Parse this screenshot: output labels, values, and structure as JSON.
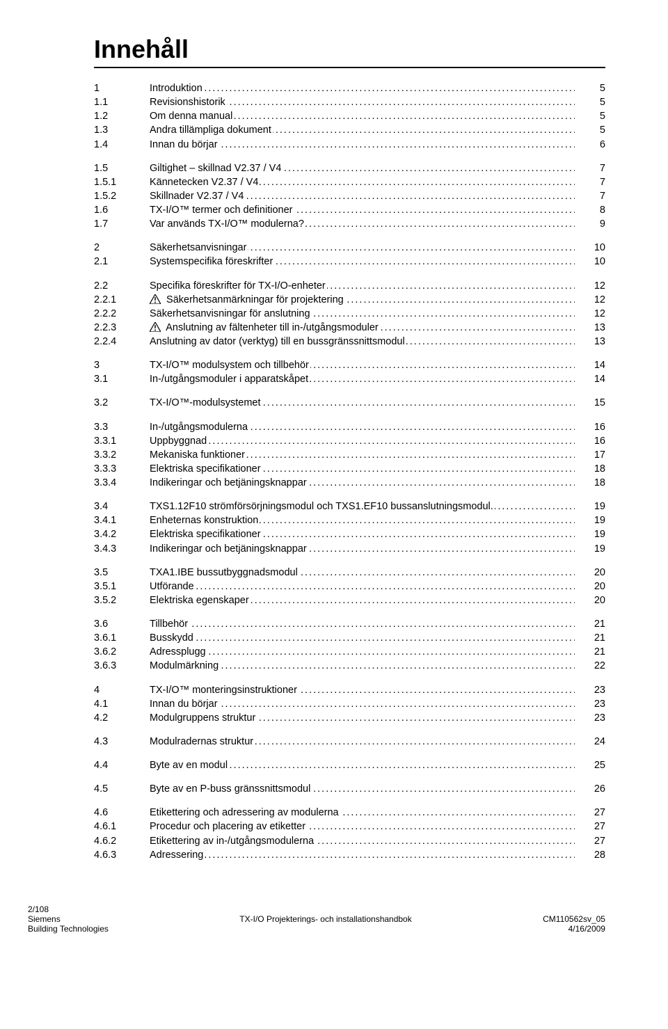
{
  "title": "Innehåll",
  "toc": [
    {
      "num": "1",
      "label": "Introduktion",
      "page": "5",
      "spaceBefore": false
    },
    {
      "num": "1.1",
      "label": "Revisionshistorik",
      "page": "5"
    },
    {
      "num": "1.2",
      "label": "Om denna manual",
      "page": "5"
    },
    {
      "num": "1.3",
      "label": "Andra tillämpliga dokument",
      "page": "5"
    },
    {
      "num": "1.4",
      "label": "Innan du börjar",
      "page": "6"
    },
    {
      "num": "1.5",
      "label": "Giltighet – skillnad V2.37 / V4",
      "page": "7",
      "spaceBefore": true
    },
    {
      "num": "1.5.1",
      "label": "Kännetecken V2.37 / V4",
      "page": "7"
    },
    {
      "num": "1.5.2",
      "label": "Skillnader V2.37 / V4",
      "page": "7"
    },
    {
      "num": "1.6",
      "label": "TX-I/O™ termer och definitioner",
      "page": "8"
    },
    {
      "num": "1.7",
      "label": "Var används TX-I/O™ modulerna?",
      "page": "9"
    },
    {
      "num": "2",
      "label": "Säkerhetsanvisningar",
      "page": "10",
      "spaceBefore": true
    },
    {
      "num": "2.1",
      "label": "Systemspecifika föreskrifter",
      "page": "10"
    },
    {
      "num": "2.2",
      "label": "Specifika föreskrifter för TX-I/O-enheter",
      "page": "12",
      "spaceBefore": true
    },
    {
      "num": "2.2.1",
      "label": "Säkerhetsanmärkningar för projektering",
      "page": "12",
      "warn": true
    },
    {
      "num": "2.2.2",
      "label": "Säkerhetsanvisningar för anslutning",
      "page": "12"
    },
    {
      "num": "2.2.3",
      "label": "Anslutning av fältenheter till in-/utgångsmoduler",
      "page": "13",
      "warn": true
    },
    {
      "num": "2.2.4",
      "label": "Anslutning av dator (verktyg) till en bussgränssnittsmodul",
      "page": "13"
    },
    {
      "num": "3",
      "label": "TX-I/O™ modulsystem och tillbehör",
      "page": "14",
      "spaceBefore": true
    },
    {
      "num": "3.1",
      "label": "In-/utgångsmoduler i apparatskåpet",
      "page": "14"
    },
    {
      "num": "3.2",
      "label": "TX-I/O™-modulsystemet",
      "page": "15",
      "spaceBefore": true
    },
    {
      "num": "3.3",
      "label": "In-/utgångsmodulerna",
      "page": "16",
      "spaceBefore": true
    },
    {
      "num": "3.3.1",
      "label": "Uppbyggnad",
      "page": "16"
    },
    {
      "num": "3.3.2",
      "label": "Mekaniska funktioner",
      "page": "17"
    },
    {
      "num": "3.3.3",
      "label": "Elektriska specifikationer",
      "page": "18"
    },
    {
      "num": "3.3.4",
      "label": "Indikeringar och betjäningsknappar",
      "page": "18"
    },
    {
      "num": "3.4",
      "label": "TXS1.12F10 strömförsörjningsmodul och TXS1.EF10 bussanslutningsmodul.",
      "page": "19",
      "spaceBefore": true
    },
    {
      "num": "3.4.1",
      "label": "Enheternas konstruktion",
      "page": "19"
    },
    {
      "num": "3.4.2",
      "label": "Elektriska specifikationer",
      "page": "19"
    },
    {
      "num": "3.4.3",
      "label": "Indikeringar och betjäningsknappar",
      "page": "19"
    },
    {
      "num": "3.5",
      "label": "TXA1.IBE bussutbyggnadsmodul",
      "page": "20",
      "spaceBefore": true
    },
    {
      "num": "3.5.1",
      "label": "Utförande",
      "page": "20"
    },
    {
      "num": "3.5.2",
      "label": "Elektriska egenskaper",
      "page": "20"
    },
    {
      "num": "3.6",
      "label": "Tillbehör",
      "page": "21",
      "spaceBefore": true
    },
    {
      "num": "3.6.1",
      "label": "Busskydd",
      "page": "21"
    },
    {
      "num": "3.6.2",
      "label": "Adressplugg",
      "page": "21"
    },
    {
      "num": "3.6.3",
      "label": "Modulmärkning",
      "page": "22"
    },
    {
      "num": "4",
      "label": "TX-I/O™ monteringsinstruktioner",
      "page": "23",
      "spaceBefore": true
    },
    {
      "num": "4.1",
      "label": "Innan du börjar",
      "page": "23"
    },
    {
      "num": "4.2",
      "label": "Modulgruppens struktur",
      "page": "23"
    },
    {
      "num": "4.3",
      "label": "Modulradernas struktur",
      "page": "24",
      "spaceBefore": true
    },
    {
      "num": "4.4",
      "label": "Byte av en modul",
      "page": "25",
      "spaceBefore": true
    },
    {
      "num": "4.5",
      "label": "Byte av en P-buss gränssnittsmodul",
      "page": "26",
      "spaceBefore": true
    },
    {
      "num": "4.6",
      "label": "Etikettering och adressering av modulerna",
      "page": "27",
      "spaceBefore": true
    },
    {
      "num": "4.6.1",
      "label": "Procedur och placering av etiketter",
      "page": "27"
    },
    {
      "num": "4.6.2",
      "label": "Etikettering av in-/utgångsmodulerna",
      "page": "27"
    },
    {
      "num": "4.6.3",
      "label": "Adressering",
      "page": "28"
    }
  ],
  "footer": {
    "left1": "2/108",
    "left2": "Siemens",
    "left3": "Building Technologies",
    "center": "TX-I/O Projekterings- och installationshandbok",
    "right1": "CM110562sv_05",
    "right2": "4/16/2009"
  }
}
